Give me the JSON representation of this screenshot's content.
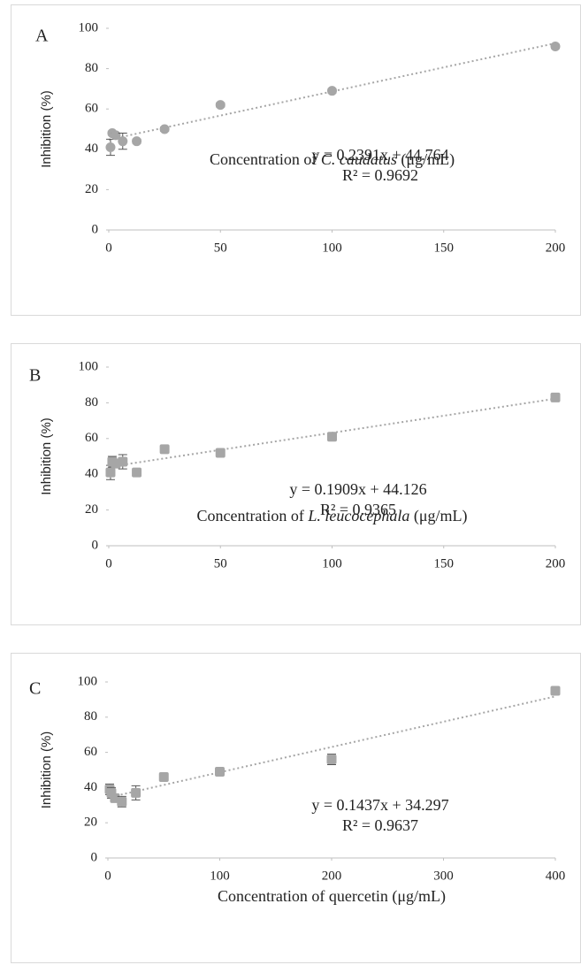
{
  "chart_data": [
    {
      "type": "scatter",
      "panel_label": "A",
      "y_label": "Inhibition (%)",
      "x_label": {
        "prefix": "Concentration of",
        "species": "C. caudatus",
        "unit": "(μg/mL)"
      },
      "x": [
        0.78,
        1.56,
        3.125,
        6.25,
        12.5,
        25,
        50,
        100,
        200
      ],
      "values": [
        41,
        48,
        47,
        44,
        44,
        50,
        62,
        69,
        91
      ],
      "errors": [
        4,
        1,
        1,
        4,
        1,
        1,
        1,
        1,
        1
      ],
      "marker": "circle",
      "color": "#a6a6a6",
      "trendline": {
        "slope": 0.2391,
        "intercept": 44.764,
        "equation": "y = 0.2391x + 44.764",
        "r2": "R² = 0.9692",
        "color": "#a6a6a6"
      },
      "xlim": [
        0,
        200
      ],
      "xticks": [
        0,
        50,
        100,
        150,
        200
      ],
      "ylim": [
        0,
        100
      ],
      "yticks": [
        0,
        20,
        40,
        60,
        80,
        100
      ],
      "grid": false
    },
    {
      "type": "scatter",
      "panel_label": "B",
      "y_label": "Inhibition (%)",
      "x_label": {
        "prefix": "Concentration of",
        "species": "L. leucocephala",
        "unit": "(μg/mL)"
      },
      "x": [
        0.78,
        1.56,
        3.125,
        6.25,
        12.5,
        25,
        50,
        100,
        200
      ],
      "values": [
        41,
        47,
        46,
        47,
        41,
        54,
        52,
        61,
        83
      ],
      "errors": [
        4,
        3,
        1,
        4,
        1,
        1,
        1,
        1,
        1
      ],
      "marker": "square",
      "color": "#a6a6a6",
      "trendline": {
        "slope": 0.1909,
        "intercept": 44.126,
        "equation": "y = 0.1909x + 44.126",
        "r2": "R² = 0.9365",
        "color": "#a6a6a6"
      },
      "xlim": [
        0,
        200
      ],
      "xticks": [
        0,
        50,
        100,
        150,
        200
      ],
      "ylim": [
        0,
        100
      ],
      "yticks": [
        0,
        20,
        40,
        60,
        80,
        100
      ],
      "grid": false
    },
    {
      "type": "scatter",
      "panel_label": "C",
      "y_label": "Inhibition (%)",
      "x_label": {
        "prefix": "Concentration of quercetin (μg/mL)"
      },
      "x": [
        1.56,
        3.125,
        6.25,
        12.5,
        25,
        50,
        100,
        200,
        400
      ],
      "values": [
        39,
        37,
        34,
        32,
        37,
        46,
        49,
        56,
        95
      ],
      "errors": [
        3,
        3,
        2,
        3,
        4,
        2,
        2,
        3,
        1
      ],
      "marker": "square",
      "color": "#a6a6a6",
      "trendline": {
        "slope": 0.1437,
        "intercept": 34.297,
        "equation": "y = 0.1437x + 34.297",
        "r2": "R² = 0.9637",
        "color": "#a6a6a6"
      },
      "xlim": [
        0,
        400
      ],
      "xticks": [
        0,
        100,
        200,
        300,
        400
      ],
      "ylim": [
        0,
        100
      ],
      "yticks": [
        0,
        20,
        40,
        60,
        80,
        100
      ],
      "grid": false
    }
  ]
}
